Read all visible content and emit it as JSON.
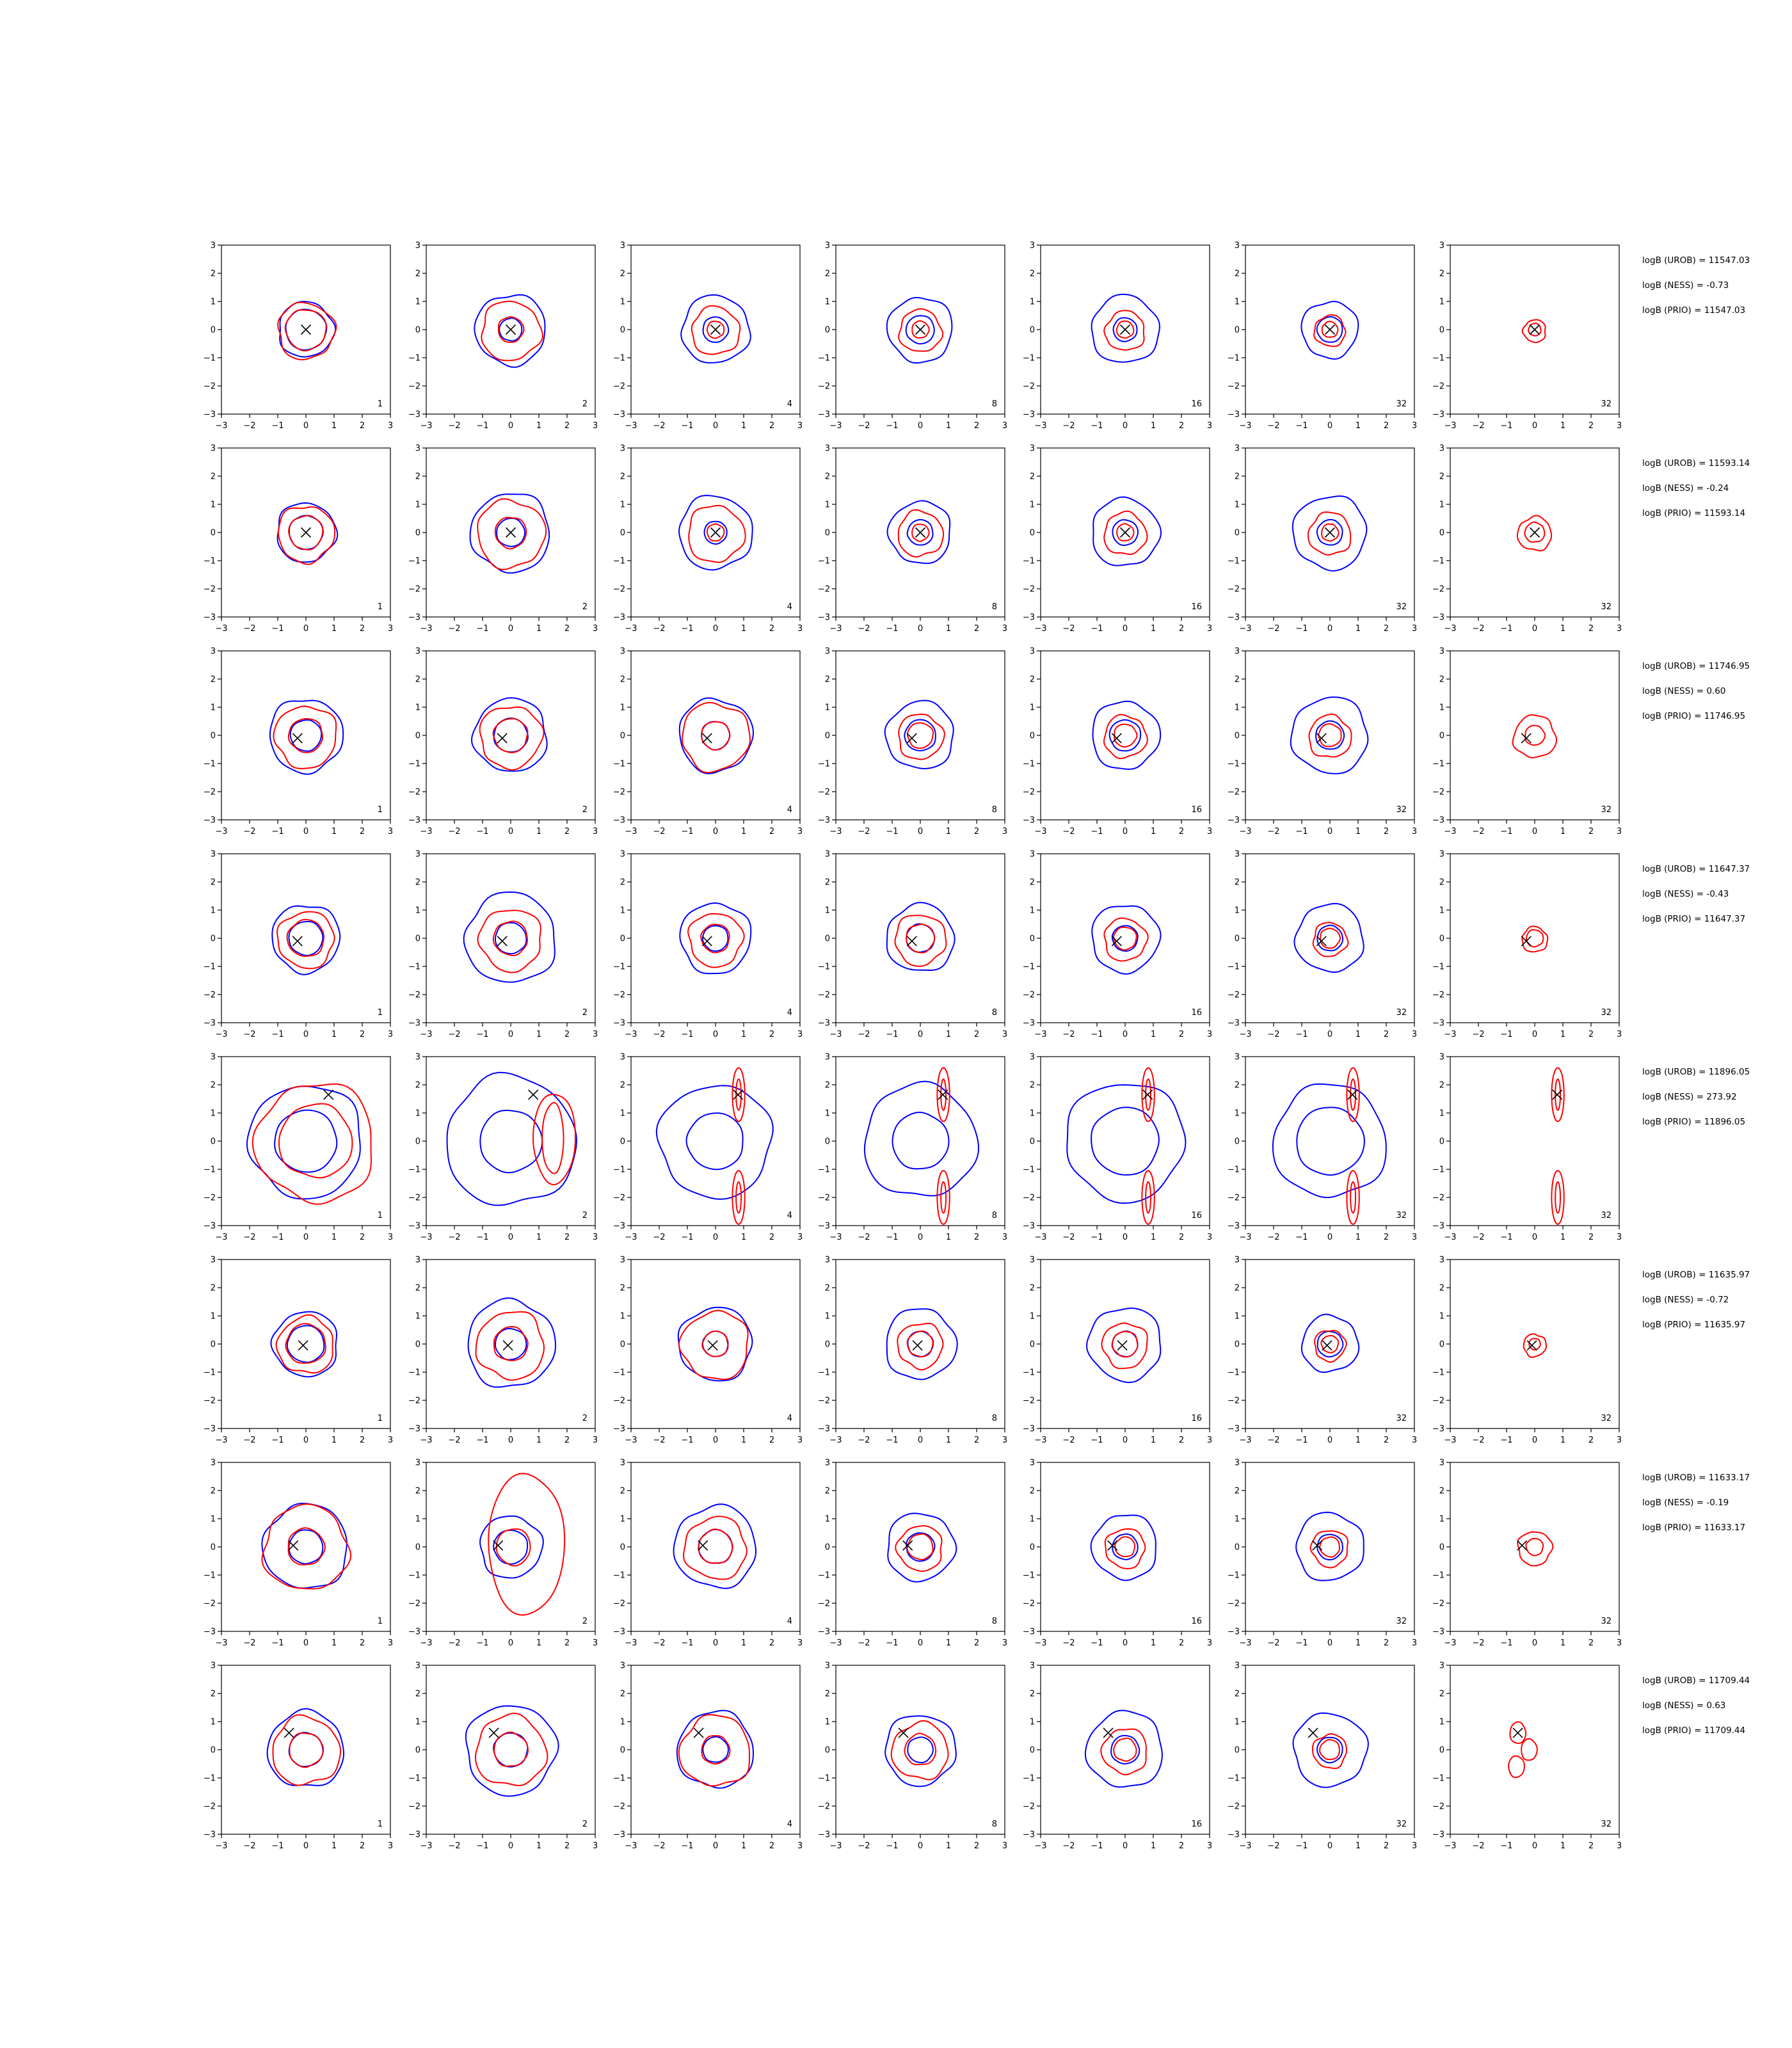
{
  "chart_data": {
    "type": "contour-grid",
    "rows": 8,
    "cols": 7,
    "xlim": [
      -3,
      3
    ],
    "ylim": [
      -3,
      3
    ],
    "xticks": [
      -3,
      -2,
      -1,
      0,
      1,
      2,
      3
    ],
    "yticks": [
      -3,
      -2,
      -1,
      0,
      1,
      2,
      3
    ],
    "xtick_labels": [
      "−3",
      "−2",
      "−1",
      "0",
      "1",
      "2",
      "3"
    ],
    "ytick_labels": [
      "−3",
      "−2",
      "−1",
      "0",
      "1",
      "2",
      "3"
    ],
    "column_labels": [
      "1",
      "2",
      "4",
      "8",
      "16",
      "32",
      "32"
    ],
    "colors": {
      "blue": "#0000ff",
      "red": "#ff0000",
      "marker": "#000000"
    },
    "row_annotations": [
      {
        "urob": "logB (UROB) = 11547.03",
        "ness": "logB (NESS) = -0.73",
        "prio": "logB (PRIO) = 11547.03"
      },
      {
        "urob": "logB (UROB) = 11593.14",
        "ness": "logB (NESS) = -0.24",
        "prio": "logB (PRIO) = 11593.14"
      },
      {
        "urob": "logB (UROB) = 11746.95",
        "ness": "logB (NESS) = 0.60",
        "prio": "logB (PRIO) = 11746.95"
      },
      {
        "urob": "logB (UROB) = 11647.37",
        "ness": "logB (NESS) = -0.43",
        "prio": "logB (PRIO) = 11647.37"
      },
      {
        "urob": "logB (UROB) = 11896.05",
        "ness": "logB (NESS) = 273.92",
        "prio": "logB (PRIO) = 11896.05"
      },
      {
        "urob": "logB (UROB) = 11635.97",
        "ness": "logB (NESS) = -0.72",
        "prio": "logB (PRIO) = 11635.97"
      },
      {
        "urob": "logB (UROB) = 11633.17",
        "ness": "logB (NESS) = -0.19",
        "prio": "logB (PRIO) = 11633.17"
      },
      {
        "urob": "logB (UROB) = 11709.44",
        "ness": "logB (NESS) = 0.63",
        "prio": "logB (PRIO) = 11709.44"
      }
    ],
    "markers": [
      [
        0,
        0
      ],
      [
        0,
        0
      ],
      [
        -0.3,
        -0.1
      ],
      [
        -0.3,
        -0.1
      ],
      [
        0.8,
        1.65
      ],
      [
        -0.1,
        -0.05
      ],
      [
        -0.45,
        0.05
      ],
      [
        -0.6,
        0.6
      ]
    ],
    "blue_radii": [
      [
        [
          0.98,
          0.72
        ],
        [
          1.25,
          0.4
        ],
        [
          1.2,
          0.45
        ],
        [
          1.15,
          0.5
        ],
        [
          1.2,
          0.42
        ],
        [
          1.0,
          0.45
        ],
        []
      ],
      [
        [
          1.05,
          0.6
        ],
        [
          1.4,
          0.5
        ],
        [
          1.3,
          0.4
        ],
        [
          1.1,
          0.45
        ],
        [
          1.2,
          0.45
        ],
        [
          1.3,
          0.45
        ],
        []
      ],
      [
        [
          1.3,
          0.55
        ],
        [
          1.3,
          0.6
        ],
        [
          1.3,
          0.5
        ],
        [
          1.2,
          0.55
        ],
        [
          1.2,
          0.55
        ],
        [
          1.35,
          0.5
        ],
        []
      ],
      [
        [
          1.2,
          0.6
        ],
        [
          1.6,
          0.55
        ],
        [
          1.25,
          0.45
        ],
        [
          1.2,
          0.5
        ],
        [
          1.2,
          0.45
        ],
        [
          1.2,
          0.45
        ],
        []
      ],
      [
        [
          2.0,
          1.1
        ],
        [
          2.3,
          1.1
        ],
        [
          2.0,
          1.0
        ],
        [
          2.0,
          1.0
        ],
        [
          2.1,
          1.2
        ],
        [
          2.0,
          1.2
        ],
        []
      ],
      [
        [
          1.15,
          0.65
        ],
        [
          1.55,
          0.55
        ],
        [
          1.3,
          0.45
        ],
        [
          1.25,
          0.45
        ],
        [
          1.3,
          0.45
        ],
        [
          1.0,
          0.45
        ],
        []
      ],
      [
        [
          1.5,
          0.6
        ],
        [
          1.1,
          0.6
        ],
        [
          1.45,
          0.6
        ],
        [
          1.2,
          0.5
        ],
        [
          1.15,
          0.45
        ],
        [
          1.2,
          0.45
        ],
        []
      ],
      [
        [
          1.35,
          0.6
        ],
        [
          1.6,
          0.6
        ],
        [
          1.35,
          0.45
        ],
        [
          1.25,
          0.45
        ],
        [
          1.35,
          0.5
        ],
        [
          1.3,
          0.45
        ],
        []
      ]
    ],
    "red_radii": [
      [
        [
          1.0,
          0.72
        ],
        [
          1.05,
          0.45
        ],
        [
          0.85,
          0.3
        ],
        [
          0.75,
          0.3
        ],
        [
          0.7,
          0.3
        ],
        [
          0.55,
          0.28
        ],
        [
          0.4,
          0.22
        ]
      ],
      [
        [
          1.0,
          0.6
        ],
        [
          1.2,
          0.55
        ],
        [
          1.0,
          0.3
        ],
        [
          0.8,
          0.3
        ],
        [
          0.75,
          0.3
        ],
        [
          0.75,
          0.3
        ],
        [
          0.6,
          0.35
        ]
      ],
      [
        [
          1.1,
          0.6
        ],
        [
          1.1,
          0.6
        ],
        [
          1.2,
          0.5
        ],
        [
          0.8,
          0.45
        ],
        [
          0.75,
          0.4
        ],
        [
          0.75,
          0.4
        ],
        [
          0.75,
          0.35
        ]
      ],
      [
        [
          1.0,
          0.65
        ],
        [
          1.1,
          0.6
        ],
        [
          0.95,
          0.5
        ],
        [
          0.9,
          0.5
        ],
        [
          0.75,
          0.4
        ],
        [
          0.6,
          0.35
        ],
        [
          0.45,
          0.3
        ]
      ],
      [
        [
          2.1,
          1.3
        ],
        [],
        [],
        [],
        [],
        [],
        []
      ],
      [
        [
          1.0,
          0.7
        ],
        [
          1.2,
          0.6
        ],
        [
          1.2,
          0.45
        ],
        [
          0.8,
          0.45
        ],
        [
          0.8,
          0.45
        ],
        [
          0.55,
          0.3
        ],
        [
          0.4,
          0.2
        ]
      ],
      [
        [
          1.5,
          0.65
        ],
        [],
        [
          1.1,
          0.6
        ],
        [
          0.8,
          0.45
        ],
        [
          0.7,
          0.35
        ],
        [
          0.65,
          0.35
        ],
        [
          0.6,
          0.3
        ]
      ],
      [
        [
          1.2,
          0.6
        ],
        [
          1.25,
          0.6
        ],
        [
          1.25,
          0.5
        ],
        [
          1.0,
          0.55
        ],
        [
          0.8,
          0.4
        ],
        [
          0.6,
          0.35
        ],
        []
      ]
    ]
  }
}
